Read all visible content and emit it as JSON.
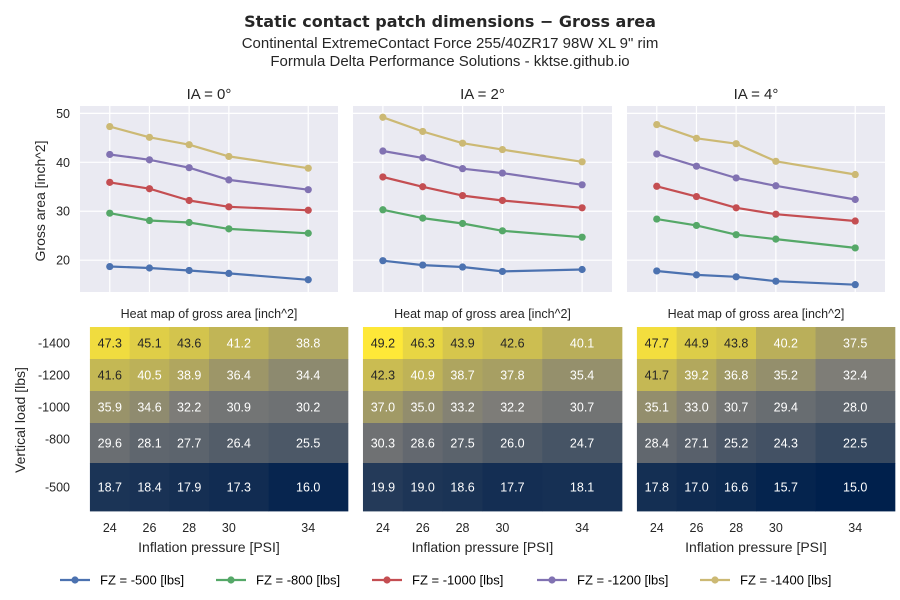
{
  "figure": {
    "title": "Static contact patch dimensions  −  Gross area",
    "subtitle_1": "Continental ExtremeContact Force 255/40ZR17 98W XL 9\" rim",
    "subtitle_2": "Formula Delta Performance Solutions - kktse.github.io"
  },
  "chart_data": [
    {
      "type": "line",
      "title": "IA = 0°",
      "ylabel": "Gross area [inch^2]",
      "x": [
        24,
        26,
        28,
        30,
        34
      ],
      "ylim": [
        13.5,
        51.5
      ],
      "yticks": [
        20,
        30,
        40,
        50
      ],
      "grid": true,
      "series": [
        {
          "name": "FZ = -500 [lbs]",
          "color": "#4c72b0",
          "values": [
            18.7,
            18.4,
            17.9,
            17.3,
            16.0
          ]
        },
        {
          "name": "FZ = -800 [lbs]",
          "color": "#55a868",
          "values": [
            29.6,
            28.1,
            27.7,
            26.4,
            25.5
          ]
        },
        {
          "name": "FZ = -1000 [lbs]",
          "color": "#c44e52",
          "values": [
            35.9,
            34.6,
            32.2,
            30.9,
            30.2
          ]
        },
        {
          "name": "FZ = -1200 [lbs]",
          "color": "#8172b2",
          "values": [
            41.6,
            40.5,
            38.9,
            36.4,
            34.4
          ]
        },
        {
          "name": "FZ = -1400 [lbs]",
          "color": "#ccb974",
          "values": [
            47.3,
            45.1,
            43.6,
            41.2,
            38.8
          ]
        }
      ]
    },
    {
      "type": "line",
      "title": "IA = 2°",
      "x": [
        24,
        26,
        28,
        30,
        34
      ],
      "ylim": [
        13.5,
        51.5
      ],
      "grid": true,
      "series": [
        {
          "name": "FZ = -500 [lbs]",
          "color": "#4c72b0",
          "values": [
            19.9,
            19.0,
            18.6,
            17.7,
            18.1
          ]
        },
        {
          "name": "FZ = -800 [lbs]",
          "color": "#55a868",
          "values": [
            30.3,
            28.6,
            27.5,
            26.0,
            24.7
          ]
        },
        {
          "name": "FZ = -1000 [lbs]",
          "color": "#c44e52",
          "values": [
            37.0,
            35.0,
            33.2,
            32.2,
            30.7
          ]
        },
        {
          "name": "FZ = -1200 [lbs]",
          "color": "#8172b2",
          "values": [
            42.3,
            40.9,
            38.7,
            37.8,
            35.4
          ]
        },
        {
          "name": "FZ = -1400 [lbs]",
          "color": "#ccb974",
          "values": [
            49.2,
            46.3,
            43.9,
            42.6,
            40.1
          ]
        }
      ]
    },
    {
      "type": "line",
      "title": "IA = 4°",
      "x": [
        24,
        26,
        28,
        30,
        34
      ],
      "ylim": [
        13.5,
        51.5
      ],
      "grid": true,
      "series": [
        {
          "name": "FZ = -500 [lbs]",
          "color": "#4c72b0",
          "values": [
            17.8,
            17.0,
            16.6,
            15.7,
            15.0
          ]
        },
        {
          "name": "FZ = -800 [lbs]",
          "color": "#55a868",
          "values": [
            28.4,
            27.1,
            25.2,
            24.3,
            22.5
          ]
        },
        {
          "name": "FZ = -1000 [lbs]",
          "color": "#c44e52",
          "values": [
            35.1,
            33.0,
            30.7,
            29.4,
            28.0
          ]
        },
        {
          "name": "FZ = -1200 [lbs]",
          "color": "#8172b2",
          "values": [
            41.7,
            39.2,
            36.8,
            35.2,
            32.4
          ]
        },
        {
          "name": "FZ = -1400 [lbs]",
          "color": "#ccb974",
          "values": [
            47.7,
            44.9,
            43.8,
            40.2,
            37.5
          ]
        }
      ]
    },
    {
      "type": "heatmap",
      "title": "Heat map of gross area [inch^2]",
      "xlabel": "Inflation pressure [PSI]",
      "ylabel": "Vertical load [lbs]",
      "x": [
        24,
        26,
        28,
        30,
        34
      ],
      "y": [
        -1400,
        -1200,
        -1000,
        -800,
        -500
      ],
      "ytick_labels": [
        "-1400",
        "-1200",
        "-1000",
        "-800",
        "-500"
      ],
      "color_range": [
        15.0,
        49.2
      ],
      "values": [
        [
          47.3,
          45.1,
          43.6,
          41.2,
          38.8
        ],
        [
          41.6,
          40.5,
          38.9,
          36.4,
          34.4
        ],
        [
          35.9,
          34.6,
          32.2,
          30.9,
          30.2
        ],
        [
          29.6,
          28.1,
          27.7,
          26.4,
          25.5
        ],
        [
          18.7,
          18.4,
          17.9,
          17.3,
          16.0
        ]
      ]
    },
    {
      "type": "heatmap",
      "title": "Heat map of gross area [inch^2]",
      "xlabel": "Inflation pressure [PSI]",
      "x": [
        24,
        26,
        28,
        30,
        34
      ],
      "y": [
        -1400,
        -1200,
        -1000,
        -800,
        -500
      ],
      "color_range": [
        15.0,
        49.2
      ],
      "values": [
        [
          49.2,
          46.3,
          43.9,
          42.6,
          40.1
        ],
        [
          42.3,
          40.9,
          38.7,
          37.8,
          35.4
        ],
        [
          37.0,
          35.0,
          33.2,
          32.2,
          30.7
        ],
        [
          30.3,
          28.6,
          27.5,
          26.0,
          24.7
        ],
        [
          19.9,
          19.0,
          18.6,
          17.7,
          18.1
        ]
      ]
    },
    {
      "type": "heatmap",
      "title": "Heat map of gross area [inch^2]",
      "xlabel": "Inflation pressure [PSI]",
      "x": [
        24,
        26,
        28,
        30,
        34
      ],
      "y": [
        -1400,
        -1200,
        -1000,
        -800,
        -500
      ],
      "color_range": [
        15.0,
        49.2
      ],
      "values": [
        [
          47.7,
          44.9,
          43.8,
          40.2,
          37.5
        ],
        [
          41.7,
          39.2,
          36.8,
          35.2,
          32.4
        ],
        [
          35.1,
          33.0,
          30.7,
          29.4,
          28.0
        ],
        [
          28.4,
          27.1,
          25.2,
          24.3,
          22.5
        ],
        [
          17.8,
          17.0,
          16.6,
          15.7,
          15.0
        ]
      ]
    }
  ],
  "legend": {
    "placement": "bottom-center",
    "entries": [
      {
        "label": "FZ = -500 [lbs]",
        "color": "#4c72b0"
      },
      {
        "label": "FZ = -800 [lbs]",
        "color": "#55a868"
      },
      {
        "label": "FZ = -1000 [lbs]",
        "color": "#c44e52"
      },
      {
        "label": "FZ = -1200 [lbs]",
        "color": "#8172b2"
      },
      {
        "label": "FZ = -1400 [lbs]",
        "color": "#ccb974"
      }
    ]
  },
  "colors": {
    "plot_background": "#eaeaf2",
    "grid": "#ffffff",
    "heatmap_low": "#00204c",
    "heatmap_mid": "#7c7b78",
    "heatmap_high": "#fee838"
  }
}
